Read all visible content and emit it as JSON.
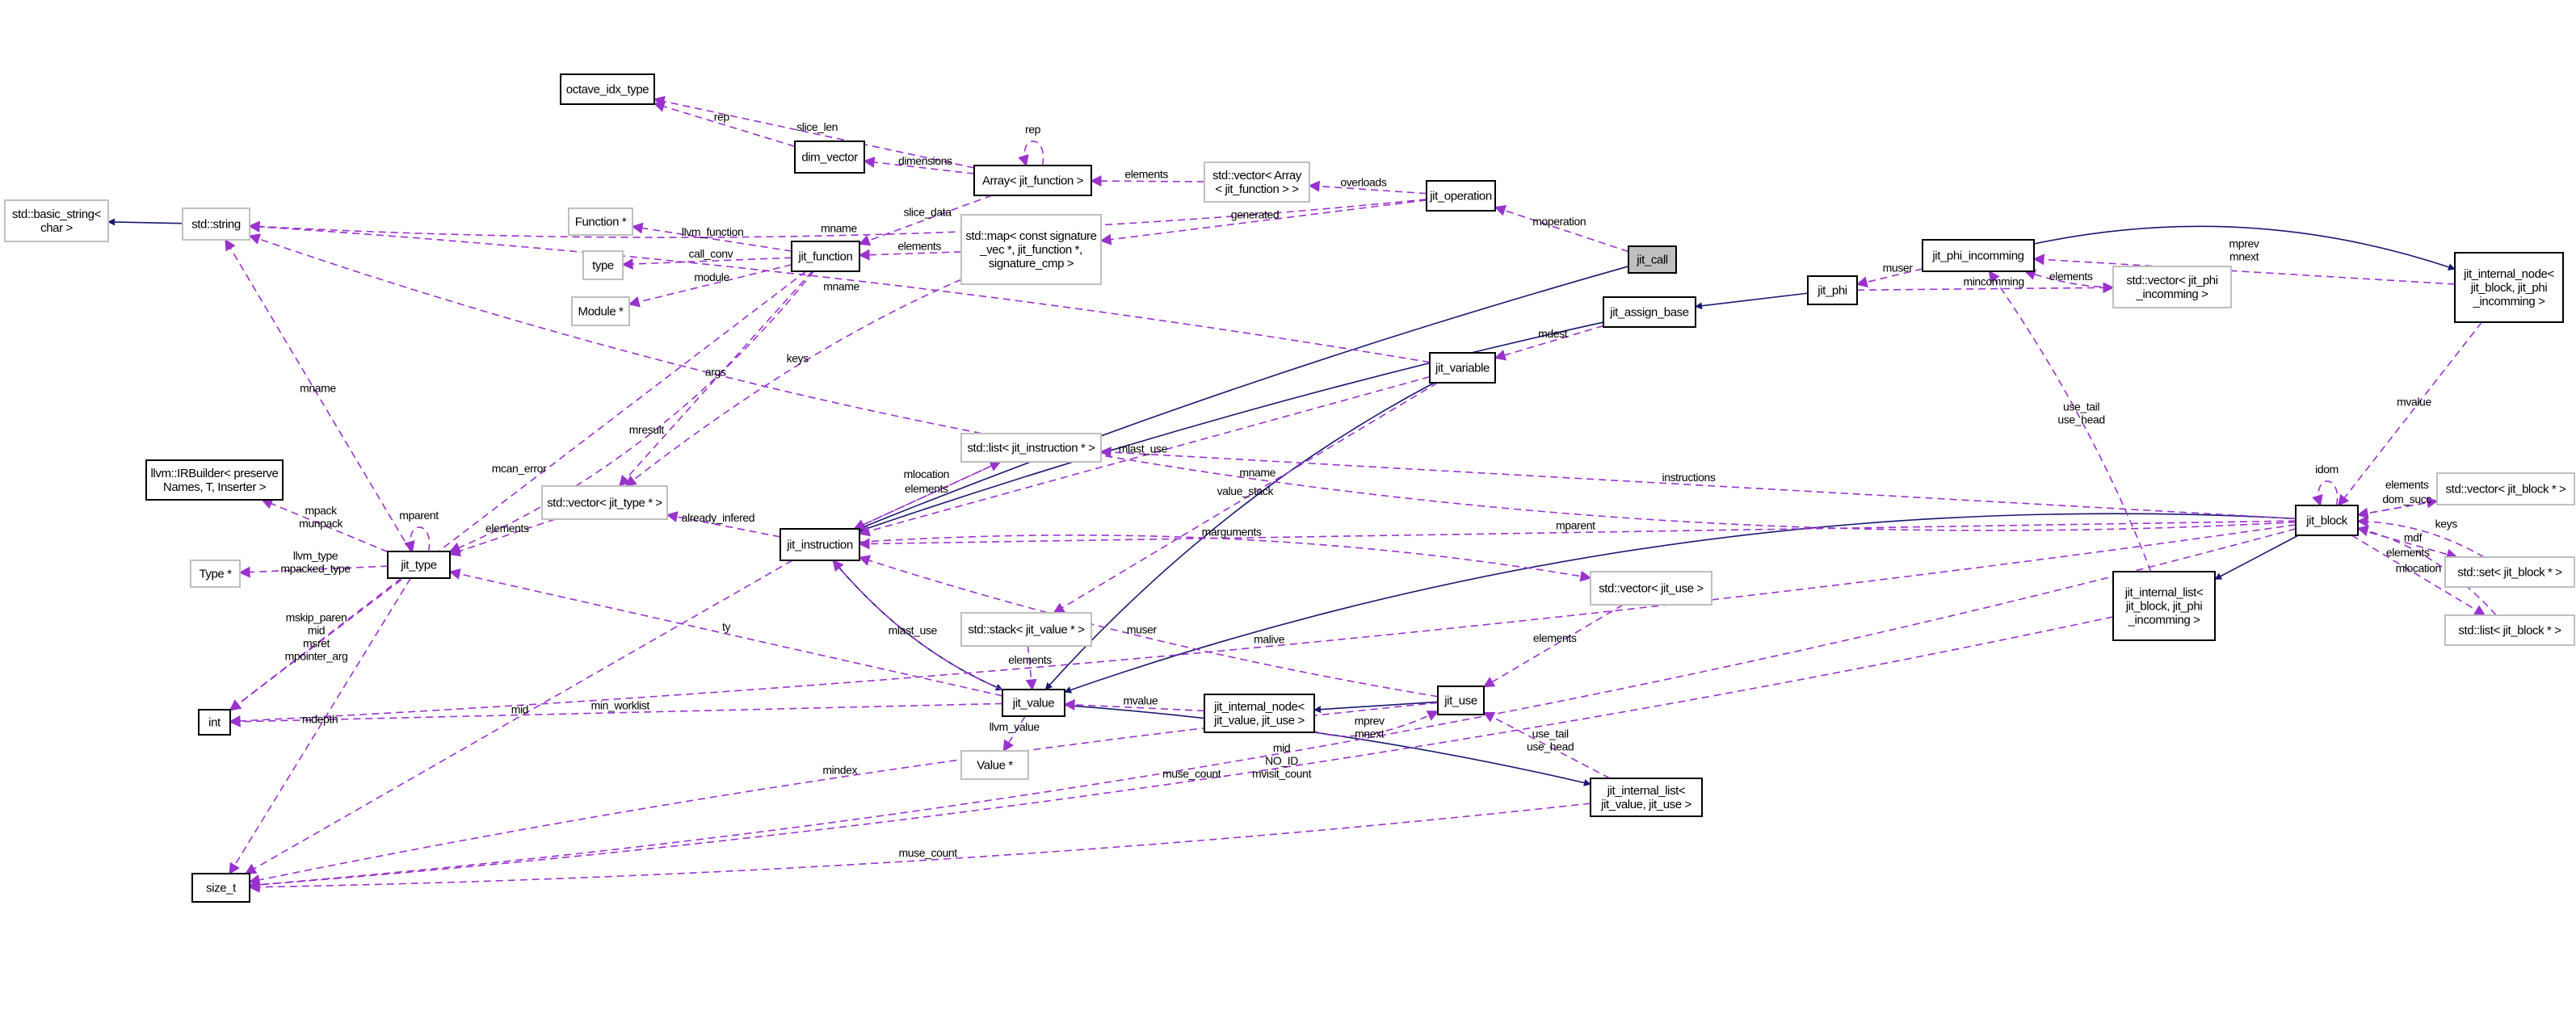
{
  "colors": {
    "inheritance": "#191970",
    "usage": "#9a32cd",
    "documented_border": "#000000",
    "external_border": "#bfbfbf",
    "focus_fill": "#bfbfbf"
  },
  "nodes": [
    {
      "id": "basic_string",
      "lines": [
        "std::basic_string<",
        "char >"
      ],
      "kind": "external"
    },
    {
      "id": "std_string",
      "lines": [
        "std::string"
      ],
      "kind": "external"
    },
    {
      "id": "octave_idx_type",
      "lines": [
        "octave_idx_type"
      ],
      "kind": "documented"
    },
    {
      "id": "dim_vector",
      "lines": [
        "dim_vector"
      ],
      "kind": "documented"
    },
    {
      "id": "array_fn",
      "lines": [
        "Array< jit_function >"
      ],
      "kind": "documented"
    },
    {
      "id": "vec_array",
      "lines": [
        "std::vector< Array",
        "< jit_function > >"
      ],
      "kind": "external"
    },
    {
      "id": "jit_operation",
      "lines": [
        "jit_operation"
      ],
      "kind": "documented"
    },
    {
      "id": "jit_call",
      "lines": [
        "jit_call"
      ],
      "kind": "focus"
    },
    {
      "id": "function_ptr",
      "lines": [
        "Function *"
      ],
      "kind": "external"
    },
    {
      "id": "type",
      "lines": [
        "type"
      ],
      "kind": "external"
    },
    {
      "id": "module_ptr",
      "lines": [
        "Module *"
      ],
      "kind": "external"
    },
    {
      "id": "jit_function",
      "lines": [
        "jit_function"
      ],
      "kind": "documented"
    },
    {
      "id": "std_map",
      "lines": [
        "std::map< const signature",
        "_vec *, jit_function *,",
        "signature_cmp >"
      ],
      "kind": "external"
    },
    {
      "id": "irbuilder",
      "lines": [
        "llvm::IRBuilder< preserve",
        "Names, T, Inserter >"
      ],
      "kind": "documented"
    },
    {
      "id": "vec_jit_type",
      "lines": [
        "std::vector< jit_type * >"
      ],
      "kind": "external"
    },
    {
      "id": "type_ptr",
      "lines": [
        "Type *"
      ],
      "kind": "external"
    },
    {
      "id": "jit_type",
      "lines": [
        "jit_type"
      ],
      "kind": "documented"
    },
    {
      "id": "jit_instruction",
      "lines": [
        "jit_instruction"
      ],
      "kind": "documented"
    },
    {
      "id": "int",
      "lines": [
        "int"
      ],
      "kind": "documented"
    },
    {
      "id": "size_t",
      "lines": [
        "size_t"
      ],
      "kind": "documented"
    },
    {
      "id": "jit_phi_incomming",
      "lines": [
        "jit_phi_incomming"
      ],
      "kind": "documented"
    },
    {
      "id": "jint_node_block",
      "lines": [
        "jit_internal_node<",
        "jit_block, jit_phi",
        "_incomming >"
      ],
      "kind": "documented"
    },
    {
      "id": "vec_phi",
      "lines": [
        "std::vector< jit_phi",
        "_incomming >"
      ],
      "kind": "external"
    },
    {
      "id": "jit_phi",
      "lines": [
        "jit_phi"
      ],
      "kind": "documented"
    },
    {
      "id": "jit_assign_base",
      "lines": [
        "jit_assign_base"
      ],
      "kind": "documented"
    },
    {
      "id": "jit_variable",
      "lines": [
        "jit_variable"
      ],
      "kind": "documented"
    },
    {
      "id": "list_instr",
      "lines": [
        "std::list< jit_instruction * >"
      ],
      "kind": "external"
    },
    {
      "id": "vec_block",
      "lines": [
        "std::vector< jit_block * >"
      ],
      "kind": "external"
    },
    {
      "id": "jit_block",
      "lines": [
        "jit_block"
      ],
      "kind": "documented"
    },
    {
      "id": "set_block",
      "lines": [
        "std::set< jit_block * >"
      ],
      "kind": "external"
    },
    {
      "id": "list_block",
      "lines": [
        "std::list< jit_block * >"
      ],
      "kind": "external"
    },
    {
      "id": "jint_list_block",
      "lines": [
        "jit_internal_list<",
        "jit_block, jit_phi",
        "_incomming >"
      ],
      "kind": "documented"
    },
    {
      "id": "vec_use",
      "lines": [
        "std::vector< jit_use >"
      ],
      "kind": "external"
    },
    {
      "id": "stack_value",
      "lines": [
        "std::stack< jit_value * >"
      ],
      "kind": "external"
    },
    {
      "id": "jit_use",
      "lines": [
        "jit_use"
      ],
      "kind": "documented"
    },
    {
      "id": "jit_value",
      "lines": [
        "jit_value"
      ],
      "kind": "documented"
    },
    {
      "id": "jint_node_value",
      "lines": [
        "jit_internal_node<",
        "jit_value, jit_use >"
      ],
      "kind": "documented"
    },
    {
      "id": "value_ptr",
      "lines": [
        "Value *"
      ],
      "kind": "external"
    },
    {
      "id": "jint_list_value",
      "lines": [
        "jit_internal_list<",
        "jit_value, jit_use >"
      ],
      "kind": "documented"
    }
  ],
  "edges": [
    {
      "from": "std_string",
      "to": "basic_string",
      "style": "solid",
      "label": []
    },
    {
      "from": "jit_call",
      "to": "jit_instruction",
      "style": "solid",
      "label": []
    },
    {
      "from": "jit_assign_base",
      "to": "jit_instruction",
      "style": "solid",
      "label": []
    },
    {
      "from": "jit_phi",
      "to": "jit_assign_base",
      "style": "solid",
      "label": []
    },
    {
      "from": "jit_variable",
      "to": "jit_value",
      "style": "solid",
      "label": []
    },
    {
      "from": "jit_instruction",
      "to": "jit_value",
      "style": "solid",
      "label": []
    },
    {
      "from": "jit_use",
      "to": "jint_node_value",
      "style": "solid",
      "label": []
    },
    {
      "from": "jit_value",
      "to": "jint_list_value",
      "style": "solid",
      "label": []
    },
    {
      "from": "jit_block",
      "to": "jit_value",
      "style": "solid",
      "label": []
    },
    {
      "from": "jit_phi_incomming",
      "to": "jint_node_block",
      "style": "solid",
      "label": []
    },
    {
      "from": "jit_block",
      "to": "jint_list_block",
      "style": "solid",
      "label": []
    },
    {
      "from": "jit_operation",
      "to": "std_string",
      "style": "dashed",
      "label": [
        "mname"
      ]
    },
    {
      "from": "jit_block",
      "to": "std_string",
      "style": "dashed",
      "label": [
        "mname"
      ]
    },
    {
      "from": "jit_variable",
      "to": "std_string",
      "style": "dashed",
      "label": [
        "mname"
      ]
    },
    {
      "from": "jit_type",
      "to": "std_string",
      "style": "dashed",
      "label": [
        "mname"
      ]
    },
    {
      "from": "dim_vector",
      "to": "octave_idx_type",
      "style": "dashed",
      "label": [
        "rep"
      ]
    },
    {
      "from": "array_fn",
      "to": "octave_idx_type",
      "style": "dashed",
      "label": [
        "slice_len"
      ]
    },
    {
      "from": "array_fn",
      "to": "array_fn",
      "style": "dashed",
      "label": [
        "rep"
      ]
    },
    {
      "from": "array_fn",
      "to": "dim_vector",
      "style": "dashed",
      "label": [
        "dimensions"
      ]
    },
    {
      "from": "vec_array",
      "to": "array_fn",
      "style": "dashed",
      "label": [
        "elements"
      ]
    },
    {
      "from": "jit_operation",
      "to": "vec_array",
      "style": "dashed",
      "label": [
        "overloads"
      ]
    },
    {
      "from": "jit_operation",
      "to": "std_map",
      "style": "dashed",
      "label": [
        "generated"
      ]
    },
    {
      "from": "jit_call",
      "to": "jit_operation",
      "style": "dashed",
      "label": [
        "moperation"
      ]
    },
    {
      "from": "array_fn",
      "to": "jit_function",
      "style": "dashed",
      "label": [
        "slice_data"
      ]
    },
    {
      "from": "std_map",
      "to": "jit_function",
      "style": "dashed",
      "label": [
        "elements"
      ]
    },
    {
      "from": "jit_function",
      "to": "function_ptr",
      "style": "dashed",
      "label": [
        "llvm_function"
      ]
    },
    {
      "from": "jit_function",
      "to": "type",
      "style": "dashed",
      "label": [
        "call_conv"
      ]
    },
    {
      "from": "jit_function",
      "to": "module_ptr",
      "style": "dashed",
      "label": [
        "module"
      ]
    },
    {
      "from": "jit_function",
      "to": "jit_type",
      "style": "dashed",
      "label": [
        "mresult"
      ]
    },
    {
      "from": "jit_function",
      "to": "vec_jit_type",
      "style": "dashed",
      "label": [
        "args"
      ]
    },
    {
      "from": "std_map",
      "to": "vec_jit_type",
      "style": "dashed",
      "label": [
        "keys"
      ]
    },
    {
      "from": "jit_function",
      "to": "int",
      "style": "dashed",
      "label": [
        "mcan_error"
      ]
    },
    {
      "from": "jit_type",
      "to": "jit_type",
      "style": "dashed",
      "label": [
        "mparent"
      ]
    },
    {
      "from": "jit_type",
      "to": "irbuilder",
      "style": "dashed",
      "label": [
        "mpack",
        "munpack"
      ]
    },
    {
      "from": "jit_type",
      "to": "type_ptr",
      "style": "dashed",
      "label": [
        "llvm_type",
        "mpacked_type"
      ]
    },
    {
      "from": "jit_type",
      "to": "int",
      "style": "dashed",
      "label": [
        "mskip_paren",
        "mid",
        "msret",
        "mpointer_arg"
      ]
    },
    {
      "from": "jit_type",
      "to": "size_t",
      "style": "dashed",
      "label": [
        "mdepth"
      ]
    },
    {
      "from": "vec_jit_type",
      "to": "jit_type",
      "style": "dashed",
      "label": [
        "elements"
      ]
    },
    {
      "from": "jit_instruction",
      "to": "vec_jit_type",
      "style": "dashed",
      "label": [
        "already_infered"
      ]
    },
    {
      "from": "jit_instruction",
      "to": "size_t",
      "style": "dashed",
      "label": [
        "mid"
      ]
    },
    {
      "from": "jit_value",
      "to": "jit_type",
      "style": "dashed",
      "label": [
        "ty"
      ]
    },
    {
      "from": "jit_variable",
      "to": "jit_instruction",
      "style": "dashed",
      "label": [
        "mlast_use"
      ]
    },
    {
      "from": "list_instr",
      "to": "jit_instruction",
      "style": "dashed",
      "label": [
        "elements"
      ]
    },
    {
      "from": "jit_instruction",
      "to": "list_instr",
      "style": "dashed",
      "label": [
        "mlocation"
      ]
    },
    {
      "from": "jit_block",
      "to": "list_instr",
      "style": "dashed",
      "label": [
        "instructions"
      ]
    },
    {
      "from": "jit_block",
      "to": "jit_instruction",
      "style": "dashed",
      "label": [
        "mparent"
      ]
    },
    {
      "from": "jit_instruction",
      "to": "vec_use",
      "style": "dashed",
      "label": [
        "marguments"
      ]
    },
    {
      "from": "jit_value",
      "to": "jit_instruction",
      "style": "dashed",
      "label": [
        "mlast_use"
      ]
    },
    {
      "from": "jit_use",
      "to": "jit_instruction",
      "style": "dashed",
      "label": [
        "muser"
      ]
    },
    {
      "from": "jit_variable",
      "to": "stack_value",
      "style": "dashed",
      "label": [
        "value_stack"
      ]
    },
    {
      "from": "stack_value",
      "to": "jit_value",
      "style": "dashed",
      "label": [
        "elements"
      ]
    },
    {
      "from": "vec_use",
      "to": "jit_use",
      "style": "dashed",
      "label": [
        "elements"
      ]
    },
    {
      "from": "jint_node_value",
      "to": "jit_value",
      "style": "dashed",
      "label": [
        "mvalue"
      ]
    },
    {
      "from": "jit_value",
      "to": "value_ptr",
      "style": "dashed",
      "label": [
        "llvm_value"
      ]
    },
    {
      "from": "jit_value",
      "to": "int",
      "style": "dashed",
      "label": [
        "min_worklist"
      ]
    },
    {
      "from": "jint_node_value",
      "to": "jit_use",
      "style": "dashed",
      "label": [
        "mprev",
        "mnext"
      ]
    },
    {
      "from": "jint_list_value",
      "to": "jit_use",
      "style": "dashed",
      "label": [
        "use_tail",
        "use_head"
      ]
    },
    {
      "from": "jit_use",
      "to": "size_t",
      "style": "dashed",
      "label": [
        "mindex"
      ]
    },
    {
      "from": "jit_block",
      "to": "int",
      "style": "dashed",
      "label": [
        "malive"
      ]
    },
    {
      "from": "jint_list_value",
      "to": "size_t",
      "style": "dashed",
      "label": [
        "muse_count"
      ]
    },
    {
      "from": "jint_list_block",
      "to": "size_t",
      "style": "dashed",
      "label": [
        "muse_count"
      ]
    },
    {
      "from": "jit_block",
      "to": "size_t",
      "style": "dashed",
      "label": [
        "mid",
        "NO_ID",
        "mvisit_count"
      ]
    },
    {
      "from": "jit_assign_base",
      "to": "jit_variable",
      "style": "dashed",
      "label": [
        "mdest"
      ]
    },
    {
      "from": "jit_phi_incomming",
      "to": "jit_phi",
      "style": "dashed",
      "label": [
        "muser"
      ]
    },
    {
      "from": "jit_phi",
      "to": "vec_phi",
      "style": "dashed",
      "label": [
        "mincomming"
      ]
    },
    {
      "from": "vec_phi",
      "to": "jit_phi_incomming",
      "style": "dashed",
      "label": [
        "elements"
      ]
    },
    {
      "from": "jint_list_block",
      "to": "jit_phi_incomming",
      "style": "dashed",
      "label": [
        "use_tail",
        "use_head"
      ]
    },
    {
      "from": "jint_node_block",
      "to": "jit_phi_incomming",
      "style": "dashed",
      "label": [
        "mprev",
        "mnext"
      ]
    },
    {
      "from": "jint_node_block",
      "to": "jit_block",
      "style": "dashed",
      "label": [
        "mvalue"
      ]
    },
    {
      "from": "jit_block",
      "to": "jit_block",
      "style": "dashed",
      "label": [
        "idom"
      ]
    },
    {
      "from": "jit_block",
      "to": "vec_block",
      "style": "dashed",
      "label": [
        "dom_succ"
      ]
    },
    {
      "from": "vec_block",
      "to": "jit_block",
      "style": "dashed",
      "label": [
        "elements"
      ]
    },
    {
      "from": "jit_block",
      "to": "set_block",
      "style": "dashed",
      "label": [
        "mdf"
      ]
    },
    {
      "from": "set_block",
      "to": "jit_block",
      "style": "dashed",
      "label": [
        "keys"
      ]
    },
    {
      "from": "jit_block",
      "to": "list_block",
      "style": "dashed",
      "label": [
        "mlocation"
      ]
    },
    {
      "from": "list_block",
      "to": "jit_block",
      "style": "dashed",
      "label": [
        "elements"
      ]
    }
  ]
}
